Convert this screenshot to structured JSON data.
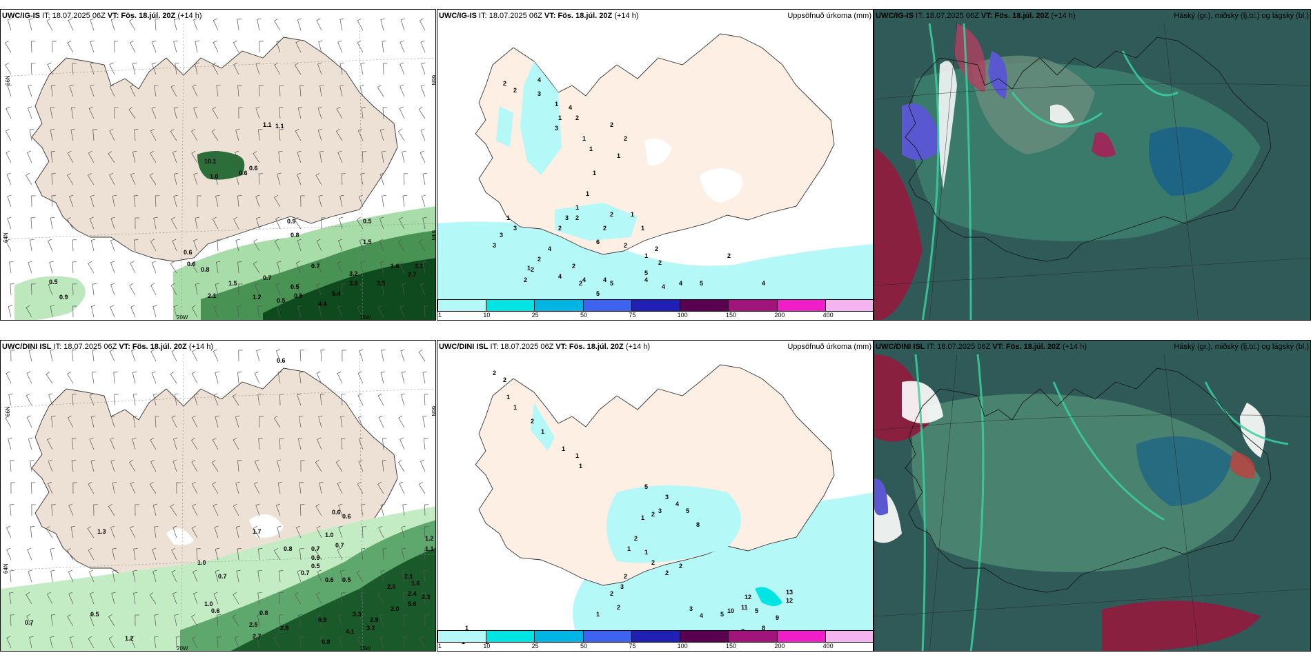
{
  "panels": {
    "tl": {
      "model": "UWC/IG-IS",
      "it": " IT: 18.07.2025 06Z ",
      "vt": "VT: Fös. 18.júl. 20Z",
      "lead": " (+14 h)",
      "right": ""
    },
    "tm": {
      "model": "UWC/IG-IS",
      "it": " IT: 18.07.2025 06Z ",
      "vt": "VT: Fös. 18.júl. 20Z",
      "lead": " (+14 h)",
      "right": "Uppsöfnuð úrkoma (mm)"
    },
    "tr": {
      "model": "UWC/IG-IS",
      "it": " IT: 18.07.2025 06Z ",
      "vt": "VT: Fös. 18.júl. 20Z",
      "lead": " (+14 h)",
      "right": "Háský (gr.), miðský (fj.bl.) og lágský (bl.)"
    },
    "bl": {
      "model": "UWC/DINI ISL",
      "it": " IT: 18.07.2025 06Z ",
      "vt": "VT: Fös. 18.júl. 20Z",
      "lead": " (+14 h)",
      "right": ""
    },
    "bm": {
      "model": "UWC/DINI ISL",
      "it": " IT: 18.07.2025 06Z ",
      "vt": "VT: Fös. 18.júl. 20Z",
      "lead": " (+14 h)",
      "right": "Uppsöfnuð úrkoma (mm)"
    },
    "br": {
      "model": "UWC/DINI ISL",
      "it": " IT: 18.07.2025 06Z ",
      "vt": "VT: Fös. 18.júl. 20Z",
      "lead": " (+14 h)",
      "right": "Háský (gr.), miðský (fj.bl.) og lágský (bl.)"
    }
  },
  "axes": {
    "lat66": "66N",
    "lat64": "64N",
    "lat65": "65N",
    "lat63": "63N",
    "lon20": "20W",
    "lon15": "15W"
  },
  "legend": {
    "colors": [
      "#b4f8f8",
      "#00e4e4",
      "#00b4e4",
      "#3c64f0",
      "#2020b4",
      "#5a0050",
      "#a0147c",
      "#f01ec8",
      "#f4b4f0"
    ],
    "ticks": [
      "1",
      "10",
      "25",
      "50",
      "75",
      "100",
      "150",
      "200",
      "400"
    ]
  },
  "labels": {
    "tl": [
      "1.1",
      "1.1",
      "10.1",
      "1.0",
      "0.6",
      "0.6",
      "0.9",
      "0.8",
      "0.6",
      "0.6",
      "0.8",
      "1.5",
      "0.5",
      "0.7",
      "0.7",
      "3.2",
      "3.8",
      "1.6",
      "2.7",
      "3.1",
      "3.5",
      "0.5",
      "0.9",
      "5.4",
      "4.4",
      "0.5",
      "0.9",
      "2.1",
      "1.2",
      "0.5",
      "1.5"
    ],
    "tm": [
      "2",
      "2",
      "4",
      "3",
      "1",
      "1",
      "3",
      "4",
      "2",
      "1",
      "1",
      "2",
      "2",
      "1",
      "1",
      "1",
      "1",
      "3",
      "2",
      "4",
      "2",
      "1",
      "2",
      "2",
      "4",
      "2",
      "2",
      "1",
      "3",
      "3",
      "3",
      "2",
      "6",
      "2",
      "2",
      "1",
      "1",
      "2",
      "2",
      "2",
      "4",
      "4",
      "4",
      "4",
      "5",
      "5",
      "5",
      "4",
      "4",
      "5",
      "2",
      "1"
    ],
    "bl": [
      "0.6",
      "1.3",
      "1.7",
      "1.0",
      "0.6",
      "0.6",
      "0.8",
      "0.7",
      "0.9",
      "0.5",
      "0.7",
      "0.6",
      "0.5",
      "1.0",
      "0.7",
      "0.7",
      "1.0",
      "0.6",
      "0.8",
      "0.9",
      "2.5",
      "2.7",
      "2.9",
      "3.3",
      "2.9",
      "3.2",
      "4.1",
      "0.8",
      "2.0",
      "2.1",
      "1.6",
      "2.4",
      "2.3",
      "5.6",
      "2.0",
      "1.2",
      "1.1",
      "0.5",
      "0.7",
      "1.2"
    ],
    "bm": [
      "2",
      "2",
      "1",
      "1",
      "2",
      "1",
      "1",
      "1",
      "1",
      "5",
      "3",
      "4",
      "5",
      "3",
      "8",
      "2",
      "1",
      "2",
      "1",
      "1",
      "2",
      "2",
      "2",
      "2",
      "3",
      "2",
      "10",
      "11",
      "12",
      "13",
      "12",
      "9",
      "8",
      "7",
      "5",
      "5",
      "4",
      "3",
      "2",
      "1",
      "1",
      "2",
      "1",
      "1"
    ]
  }
}
